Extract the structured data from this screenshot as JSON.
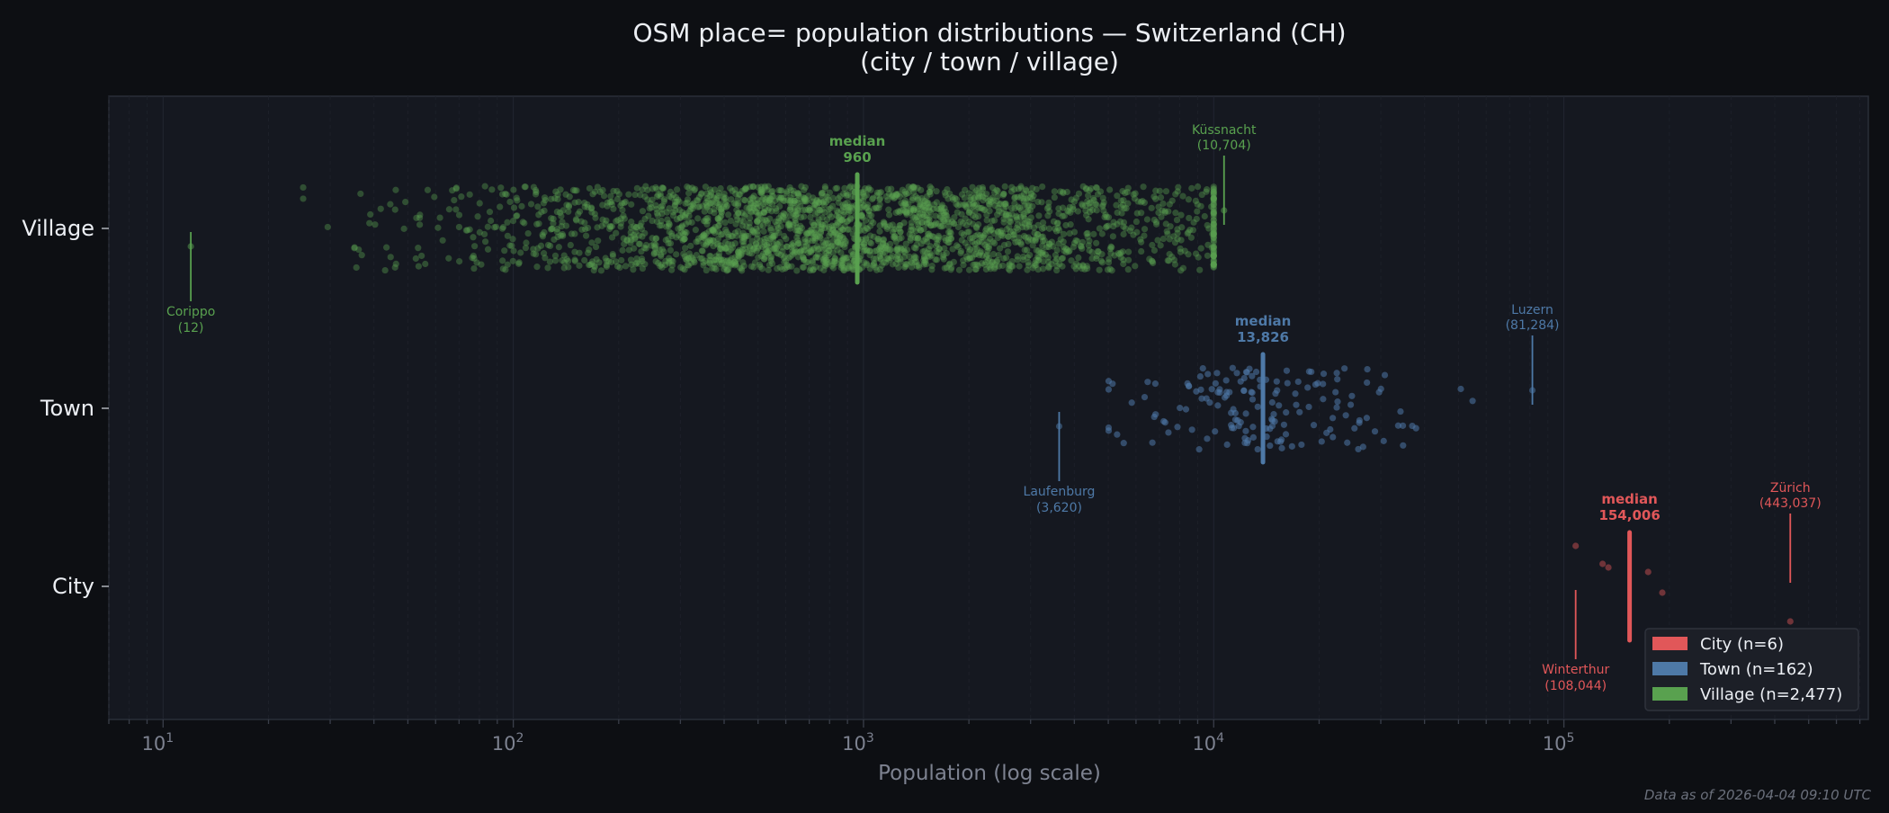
{
  "chart_data": {
    "type": "scatter",
    "title": "OSM place= population distributions — Switzerland (CH)",
    "subtitle": "(city / town / village)",
    "xlabel": "Population (log scale)",
    "ylabel": "",
    "xscale": "log",
    "xlim": [
      7,
      740000
    ],
    "x_ticks": [
      {
        "value": 10,
        "base": "10",
        "exp": "1"
      },
      {
        "value": 100,
        "base": "10",
        "exp": "2"
      },
      {
        "value": 1000,
        "base": "10",
        "exp": "3"
      },
      {
        "value": 10000,
        "base": "10",
        "exp": "4"
      },
      {
        "value": 100000,
        "base": "10",
        "exp": "5"
      }
    ],
    "categories": [
      "City",
      "Town",
      "Village"
    ],
    "grid": true,
    "legend_position": "bottom-right",
    "series": [
      {
        "name": "City",
        "legend": "City  (n=6)",
        "color": "#e15759",
        "n": 6,
        "values": [
          108044,
          129000,
          134000,
          174000,
          191000,
          443037
        ],
        "median": 154006,
        "median_label": "median",
        "median_text": "154,006",
        "annotations": [
          {
            "name": "Zürich",
            "value": 443037,
            "text": "(443,037)",
            "side": "above"
          },
          {
            "name": "Winterthur",
            "value": 108044,
            "text": "(108,044)",
            "side": "below"
          }
        ]
      },
      {
        "name": "Town",
        "legend": "Town  (n=162)",
        "color": "#4e79a7",
        "n": 162,
        "min": 3620,
        "max": 81284,
        "median": 13826,
        "median_label": "median",
        "median_text": "13,826",
        "annotations": [
          {
            "name": "Luzern",
            "value": 81284,
            "text": "(81,284)",
            "side": "above"
          },
          {
            "name": "Laufenburg",
            "value": 3620,
            "text": "(3,620)",
            "side": "below"
          }
        ]
      },
      {
        "name": "Village",
        "legend": "Village  (n=2,477)",
        "color": "#59a14f",
        "n": 2477,
        "min": 12,
        "max": 10704,
        "median": 960,
        "median_label": "median",
        "median_text": "960",
        "annotations": [
          {
            "name": "Küssnacht",
            "value": 10704,
            "text": "(10,704)",
            "side": "above"
          },
          {
            "name": "Corippo",
            "value": 12,
            "text": "(12)",
            "side": "below"
          }
        ]
      }
    ]
  },
  "footer": "Data as of 2026-04-04 09:10 UTC"
}
